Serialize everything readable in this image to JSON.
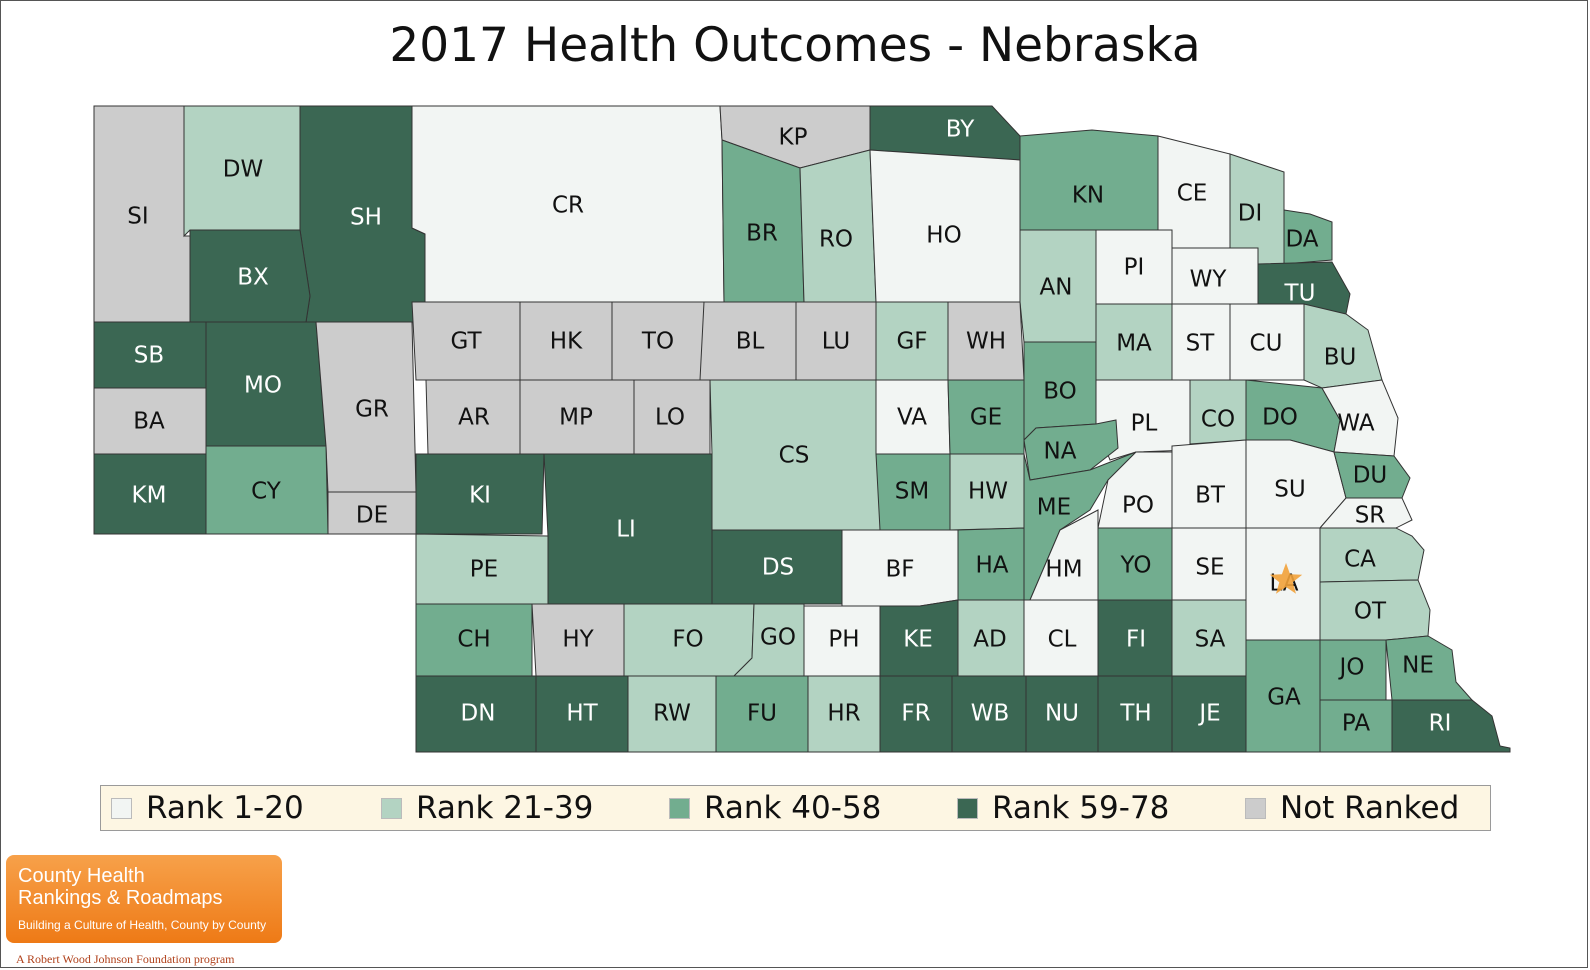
{
  "title": "2017 Health Outcomes - Nebraska",
  "colors": {
    "rank_1_20": "#f2f5f3",
    "rank_21_39": "#b3d3c2",
    "rank_40_58": "#72ad8f",
    "rank_59_78": "#3b6753",
    "not_ranked": "#cccccc",
    "star": "#f2a23a"
  },
  "legend": [
    {
      "label": "Rank 1-20",
      "color": "#f2f5f3"
    },
    {
      "label": "Rank 21-39",
      "color": "#b3d3c2"
    },
    {
      "label": "Rank 40-58",
      "color": "#72ad8f"
    },
    {
      "label": "Rank 59-78",
      "color": "#3b6753"
    },
    {
      "label": "Not Ranked",
      "color": "#cccccc"
    }
  ],
  "counties": [
    {
      "abbr": "SI",
      "category": "not_ranked"
    },
    {
      "abbr": "DW",
      "category": "rank_21_39"
    },
    {
      "abbr": "SH",
      "category": "rank_59_78"
    },
    {
      "abbr": "BX",
      "category": "rank_59_78"
    },
    {
      "abbr": "CR",
      "category": "rank_1_20"
    },
    {
      "abbr": "KP",
      "category": "not_ranked"
    },
    {
      "abbr": "BY",
      "category": "rank_59_78"
    },
    {
      "abbr": "BR",
      "category": "rank_40_58"
    },
    {
      "abbr": "RO",
      "category": "rank_21_39"
    },
    {
      "abbr": "HO",
      "category": "rank_1_20"
    },
    {
      "abbr": "KN",
      "category": "rank_40_58"
    },
    {
      "abbr": "CE",
      "category": "rank_1_20"
    },
    {
      "abbr": "DI",
      "category": "rank_21_39"
    },
    {
      "abbr": "DA",
      "category": "rank_40_58"
    },
    {
      "abbr": "PI",
      "category": "rank_1_20"
    },
    {
      "abbr": "WY",
      "category": "rank_1_20"
    },
    {
      "abbr": "TU",
      "category": "rank_59_78"
    },
    {
      "abbr": "AN",
      "category": "rank_21_39"
    },
    {
      "abbr": "SB",
      "category": "rank_59_78"
    },
    {
      "abbr": "MO",
      "category": "rank_59_78"
    },
    {
      "abbr": "GR",
      "category": "not_ranked"
    },
    {
      "abbr": "GT",
      "category": "not_ranked"
    },
    {
      "abbr": "HK",
      "category": "not_ranked"
    },
    {
      "abbr": "TO",
      "category": "not_ranked"
    },
    {
      "abbr": "BL",
      "category": "not_ranked"
    },
    {
      "abbr": "LU",
      "category": "not_ranked"
    },
    {
      "abbr": "GF",
      "category": "rank_21_39"
    },
    {
      "abbr": "WH",
      "category": "not_ranked"
    },
    {
      "abbr": "MA",
      "category": "rank_21_39"
    },
    {
      "abbr": "ST",
      "category": "rank_1_20"
    },
    {
      "abbr": "CU",
      "category": "rank_1_20"
    },
    {
      "abbr": "BU",
      "category": "rank_21_39"
    },
    {
      "abbr": "BA",
      "category": "not_ranked"
    },
    {
      "abbr": "AR",
      "category": "not_ranked"
    },
    {
      "abbr": "MP",
      "category": "not_ranked"
    },
    {
      "abbr": "LO",
      "category": "not_ranked"
    },
    {
      "abbr": "CS",
      "category": "rank_21_39"
    },
    {
      "abbr": "VA",
      "category": "rank_1_20"
    },
    {
      "abbr": "GE",
      "category": "rank_40_58"
    },
    {
      "abbr": "BO",
      "category": "rank_40_58"
    },
    {
      "abbr": "PL",
      "category": "rank_1_20"
    },
    {
      "abbr": "CO",
      "category": "rank_21_39"
    },
    {
      "abbr": "DO",
      "category": "rank_40_58"
    },
    {
      "abbr": "WA",
      "category": "rank_1_20"
    },
    {
      "abbr": "NA",
      "category": "rank_40_58"
    },
    {
      "abbr": "KM",
      "category": "rank_59_78"
    },
    {
      "abbr": "CY",
      "category": "rank_40_58"
    },
    {
      "abbr": "DE",
      "category": "not_ranked"
    },
    {
      "abbr": "KI",
      "category": "rank_59_78"
    },
    {
      "abbr": "LI",
      "category": "rank_59_78"
    },
    {
      "abbr": "SM",
      "category": "rank_40_58"
    },
    {
      "abbr": "HW",
      "category": "rank_21_39"
    },
    {
      "abbr": "ME",
      "category": "rank_40_58"
    },
    {
      "abbr": "PO",
      "category": "rank_1_20"
    },
    {
      "abbr": "BT",
      "category": "rank_1_20"
    },
    {
      "abbr": "SU",
      "category": "rank_1_20"
    },
    {
      "abbr": "DU",
      "category": "rank_40_58"
    },
    {
      "abbr": "SR",
      "category": "rank_1_20"
    },
    {
      "abbr": "PE",
      "category": "rank_21_39"
    },
    {
      "abbr": "DS",
      "category": "rank_59_78"
    },
    {
      "abbr": "BF",
      "category": "rank_1_20"
    },
    {
      "abbr": "HA",
      "category": "rank_40_58"
    },
    {
      "abbr": "HM",
      "category": "rank_1_20"
    },
    {
      "abbr": "YO",
      "category": "rank_40_58"
    },
    {
      "abbr": "SE",
      "category": "rank_1_20"
    },
    {
      "abbr": "LA",
      "category": "rank_1_20"
    },
    {
      "abbr": "CA",
      "category": "rank_21_39"
    },
    {
      "abbr": "OT",
      "category": "rank_21_39"
    },
    {
      "abbr": "CH",
      "category": "rank_40_58"
    },
    {
      "abbr": "HY",
      "category": "not_ranked"
    },
    {
      "abbr": "FO",
      "category": "rank_21_39"
    },
    {
      "abbr": "GO",
      "category": "rank_21_39"
    },
    {
      "abbr": "PH",
      "category": "rank_1_20"
    },
    {
      "abbr": "KE",
      "category": "rank_59_78"
    },
    {
      "abbr": "AD",
      "category": "rank_21_39"
    },
    {
      "abbr": "CL",
      "category": "rank_1_20"
    },
    {
      "abbr": "FI",
      "category": "rank_59_78"
    },
    {
      "abbr": "SA",
      "category": "rank_21_39"
    },
    {
      "abbr": "JO",
      "category": "rank_40_58"
    },
    {
      "abbr": "NE",
      "category": "rank_40_58"
    },
    {
      "abbr": "GA",
      "category": "rank_40_58"
    },
    {
      "abbr": "DN",
      "category": "rank_59_78"
    },
    {
      "abbr": "HT",
      "category": "rank_59_78"
    },
    {
      "abbr": "RW",
      "category": "rank_21_39"
    },
    {
      "abbr": "FU",
      "category": "rank_40_58"
    },
    {
      "abbr": "HR",
      "category": "rank_21_39"
    },
    {
      "abbr": "FR",
      "category": "rank_59_78"
    },
    {
      "abbr": "WB",
      "category": "rank_59_78"
    },
    {
      "abbr": "NU",
      "category": "rank_59_78"
    },
    {
      "abbr": "TH",
      "category": "rank_59_78"
    },
    {
      "abbr": "JE",
      "category": "rank_59_78"
    },
    {
      "abbr": "PA",
      "category": "rank_40_58"
    },
    {
      "abbr": "RI",
      "category": "rank_59_78"
    }
  ],
  "logo": {
    "line1": "County Health",
    "line2": "Rankings & Roadmaps",
    "tagline": "Building a Culture of Health, County by County",
    "footer": "A Robert Wood Johnson Foundation program"
  }
}
